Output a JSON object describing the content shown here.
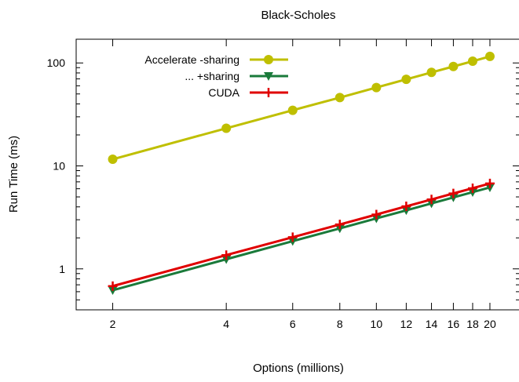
{
  "chart_data": {
    "type": "line",
    "title": "Black-Scholes",
    "xlabel": "Options (millions)",
    "ylabel": "Run Time (ms)",
    "x_scale": "log",
    "y_scale": "log",
    "xlim": [
      1.6,
      24
    ],
    "ylim": [
      0.4,
      170
    ],
    "x_ticks": [
      2,
      4,
      6,
      8,
      10,
      12,
      14,
      16,
      18,
      20
    ],
    "x_tick_labels": [
      "2",
      "4",
      "6",
      "8",
      "10",
      "12",
      "14",
      "16",
      "18",
      "20"
    ],
    "y_ticks": [
      1,
      10,
      100
    ],
    "y_tick_labels": [
      "1",
      "10",
      "100"
    ],
    "grid": false,
    "legend_position": "top-left",
    "x": [
      2,
      4,
      6,
      8,
      10,
      12,
      14,
      16,
      18,
      20
    ],
    "series": [
      {
        "name": "Accelerate -sharing",
        "color": "#bfbf00",
        "marker": "circle",
        "values": [
          11.6,
          23.2,
          34.7,
          46.1,
          57.7,
          69.3,
          81.0,
          92.4,
          104.0,
          115.8
        ]
      },
      {
        "name": "... +sharing",
        "color": "#1a7a3a",
        "marker": "triangle-down",
        "values": [
          0.62,
          1.24,
          1.86,
          2.47,
          3.09,
          3.7,
          4.32,
          4.94,
          5.56,
          6.18
        ]
      },
      {
        "name": "CUDA",
        "color": "#e00000",
        "marker": "plus",
        "values": [
          0.68,
          1.36,
          2.03,
          2.7,
          3.37,
          4.05,
          4.72,
          5.4,
          6.07,
          6.75
        ]
      }
    ]
  }
}
